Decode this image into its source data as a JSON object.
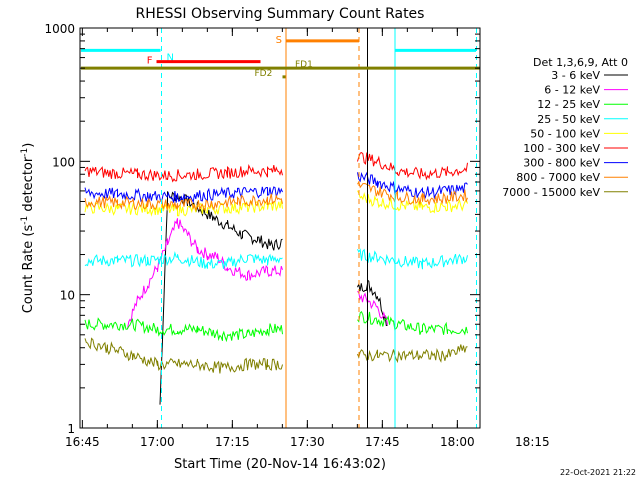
{
  "chart_data": {
    "type": "line",
    "title": "RHESSI Observing Summary Count Rates",
    "xlabel": "Start Time (20-Nov-14 16:43:02)",
    "ylabel_main": "Count Rate (s",
    "ylabel_sup1": "-1",
    "ylabel_mid": " detector",
    "ylabel_sup2": "-1",
    "ylabel_end": ")",
    "yscale": "log",
    "ylim": [
      1,
      1000
    ],
    "xlim_minutes": [
      16.5,
      96.5
    ],
    "x_ticks": [
      {
        "m": 16.97,
        "label": "16:45"
      },
      {
        "m": 31.97,
        "label": "17:00"
      },
      {
        "m": 46.97,
        "label": "17:15"
      },
      {
        "m": 61.97,
        "label": "17:30"
      },
      {
        "m": 76.97,
        "label": "17:45"
      },
      {
        "m": 91.97,
        "label": "18:00"
      },
      {
        "m": 106.97,
        "label": "18:15"
      }
    ],
    "y_ticks": [
      {
        "v": 1,
        "label": "1"
      },
      {
        "v": 10,
        "label": "10"
      },
      {
        "v": 100,
        "label": "100"
      },
      {
        "v": 1000,
        "label": "1000"
      }
    ],
    "legend_title": "Det 1,3,6,9, Att 0",
    "legend_position": "right",
    "series": [
      {
        "name": "3 - 6 keV",
        "color": "#000000",
        "points": [
          [
            32.5,
            1.5
          ],
          [
            34,
            55
          ],
          [
            36,
            55
          ],
          [
            38,
            50
          ],
          [
            40,
            45
          ],
          [
            43,
            38
          ],
          [
            46,
            33
          ],
          [
            49,
            28
          ],
          [
            52,
            26
          ],
          [
            55,
            23
          ],
          [
            57,
            25
          ],
          [
            72,
            11
          ],
          [
            74,
            12
          ],
          [
            76,
            10
          ],
          [
            78,
            6
          ]
        ]
      },
      {
        "name": "6 - 12 keV",
        "color": "#ff00ff",
        "points": [
          [
            26,
            6
          ],
          [
            28,
            9
          ],
          [
            30,
            12
          ],
          [
            32,
            16
          ],
          [
            34,
            24
          ],
          [
            36,
            35
          ],
          [
            38,
            28
          ],
          [
            40,
            22
          ],
          [
            42,
            20
          ],
          [
            44,
            19
          ],
          [
            46,
            16
          ],
          [
            50,
            14
          ],
          [
            54,
            15
          ],
          [
            57,
            15
          ],
          [
            72,
            10
          ],
          [
            74,
            9
          ],
          [
            76,
            8
          ],
          [
            78,
            6
          ]
        ]
      },
      {
        "name": "12 - 25 keV",
        "color": "#00ff00",
        "points": [
          [
            17.5,
            6
          ],
          [
            22,
            6
          ],
          [
            27,
            6
          ],
          [
            32,
            5.5
          ],
          [
            36,
            5.5
          ],
          [
            40,
            5.5
          ],
          [
            45,
            5
          ],
          [
            50,
            5
          ],
          [
            54,
            5.5
          ],
          [
            57,
            5.5
          ],
          [
            72,
            7
          ],
          [
            76,
            6.5
          ],
          [
            80,
            6
          ],
          [
            85,
            5.5
          ],
          [
            90,
            5.5
          ],
          [
            94,
            5.5
          ]
        ]
      },
      {
        "name": "25 - 50 keV",
        "color": "#00ffff",
        "points": [
          [
            17.5,
            18
          ],
          [
            24,
            18
          ],
          [
            30,
            18
          ],
          [
            36,
            19
          ],
          [
            42,
            17
          ],
          [
            46,
            17
          ],
          [
            50,
            19
          ],
          [
            54,
            18
          ],
          [
            57,
            19
          ],
          [
            72,
            20
          ],
          [
            76,
            19
          ],
          [
            80,
            18
          ],
          [
            85,
            17
          ],
          [
            90,
            18
          ],
          [
            94,
            19
          ]
        ]
      },
      {
        "name": "50 - 100 keV",
        "color": "#ffff00",
        "points": [
          [
            17.5,
            45
          ],
          [
            24,
            44
          ],
          [
            30,
            44
          ],
          [
            36,
            43
          ],
          [
            42,
            44
          ],
          [
            48,
            45
          ],
          [
            54,
            46
          ],
          [
            57,
            47
          ],
          [
            72,
            55
          ],
          [
            76,
            50
          ],
          [
            80,
            47
          ],
          [
            85,
            45
          ],
          [
            90,
            46
          ],
          [
            94,
            47
          ]
        ]
      },
      {
        "name": "100 - 300 keV",
        "color": "#ff0000",
        "points": [
          [
            17.5,
            85
          ],
          [
            22,
            82
          ],
          [
            28,
            80
          ],
          [
            34,
            78
          ],
          [
            40,
            80
          ],
          [
            46,
            82
          ],
          [
            50,
            85
          ],
          [
            54,
            84
          ],
          [
            57,
            87
          ],
          [
            72,
            110
          ],
          [
            76,
            100
          ],
          [
            80,
            85
          ],
          [
            85,
            80
          ],
          [
            90,
            83
          ],
          [
            94,
            88
          ]
        ]
      },
      {
        "name": "300 - 800 keV",
        "color": "#0000ff",
        "points": [
          [
            17.5,
            58
          ],
          [
            24,
            57
          ],
          [
            30,
            55
          ],
          [
            36,
            54
          ],
          [
            42,
            56
          ],
          [
            48,
            58
          ],
          [
            54,
            60
          ],
          [
            57,
            60
          ],
          [
            72,
            78
          ],
          [
            76,
            70
          ],
          [
            80,
            62
          ],
          [
            85,
            58
          ],
          [
            90,
            60
          ],
          [
            94,
            63
          ]
        ]
      },
      {
        "name": "800 - 7000 keV",
        "color": "#ff8000",
        "points": [
          [
            17.5,
            50
          ],
          [
            24,
            49
          ],
          [
            30,
            48
          ],
          [
            36,
            47
          ],
          [
            42,
            48
          ],
          [
            48,
            50
          ],
          [
            54,
            52
          ],
          [
            57,
            52
          ],
          [
            72,
            66
          ],
          [
            76,
            60
          ],
          [
            80,
            54
          ],
          [
            85,
            52
          ],
          [
            90,
            53
          ],
          [
            94,
            56
          ]
        ]
      },
      {
        "name": "7000 - 15000 keV",
        "color": "#808000",
        "points": [
          [
            17.5,
            4.5
          ],
          [
            22,
            4
          ],
          [
            27,
            3.5
          ],
          [
            32,
            3
          ],
          [
            36,
            3
          ],
          [
            40,
            3
          ],
          [
            45,
            2.8
          ],
          [
            50,
            3
          ],
          [
            54,
            3
          ],
          [
            57,
            3
          ],
          [
            72,
            3.5
          ],
          [
            76,
            3.5
          ],
          [
            80,
            3.5
          ],
          [
            85,
            3.5
          ],
          [
            90,
            3.5
          ],
          [
            94,
            4
          ]
        ]
      }
    ],
    "vlines": [
      {
        "m": 32.8,
        "color": "#00ffff",
        "style": "dashed"
      },
      {
        "m": 57.7,
        "color": "#ff8000",
        "style": "solid"
      },
      {
        "m": 72.3,
        "color": "#ff8000",
        "style": "dashed"
      },
      {
        "m": 74.0,
        "color": "#000000",
        "style": "solid"
      },
      {
        "m": 79.5,
        "color": "#00ffff",
        "style": "solid"
      },
      {
        "m": 95.8,
        "color": "#00ffff",
        "style": "dashed"
      }
    ],
    "flag_bars": [
      {
        "label": "N",
        "color": "#00ffff",
        "m_start": 16.7,
        "m_end": 32.6,
        "y": 680,
        "label_color": "#00ffff",
        "label_side": "right"
      },
      {
        "label": "F",
        "color": "#ff0000",
        "m_start": 31.8,
        "m_end": 52.6,
        "y": 560,
        "label_color": "#ff0000",
        "label_side": "left"
      },
      {
        "label": "S",
        "color": "#ff8000",
        "m_start": 57.7,
        "m_end": 72.3,
        "y": 800,
        "label_color": "#ff8000",
        "label_side": "left"
      },
      {
        "label": "",
        "color": "#00ffff",
        "m_start": 79.6,
        "m_end": 95.7,
        "y": 680,
        "label_color": "#00ffff",
        "label_side": "none"
      },
      {
        "label": "",
        "color": "#808000",
        "m_start": 16.7,
        "m_end": 96.4,
        "y": 500,
        "label_color": "#808000",
        "label_side": "none"
      }
    ],
    "annotations": [
      {
        "text": "FD1",
        "m": 59.5,
        "v": 510,
        "color": "#808000"
      },
      {
        "text": "FD2",
        "m": 51.4,
        "v": 435,
        "color": "#808000"
      }
    ],
    "footer_date": "22-Oct-2021 21:22"
  }
}
